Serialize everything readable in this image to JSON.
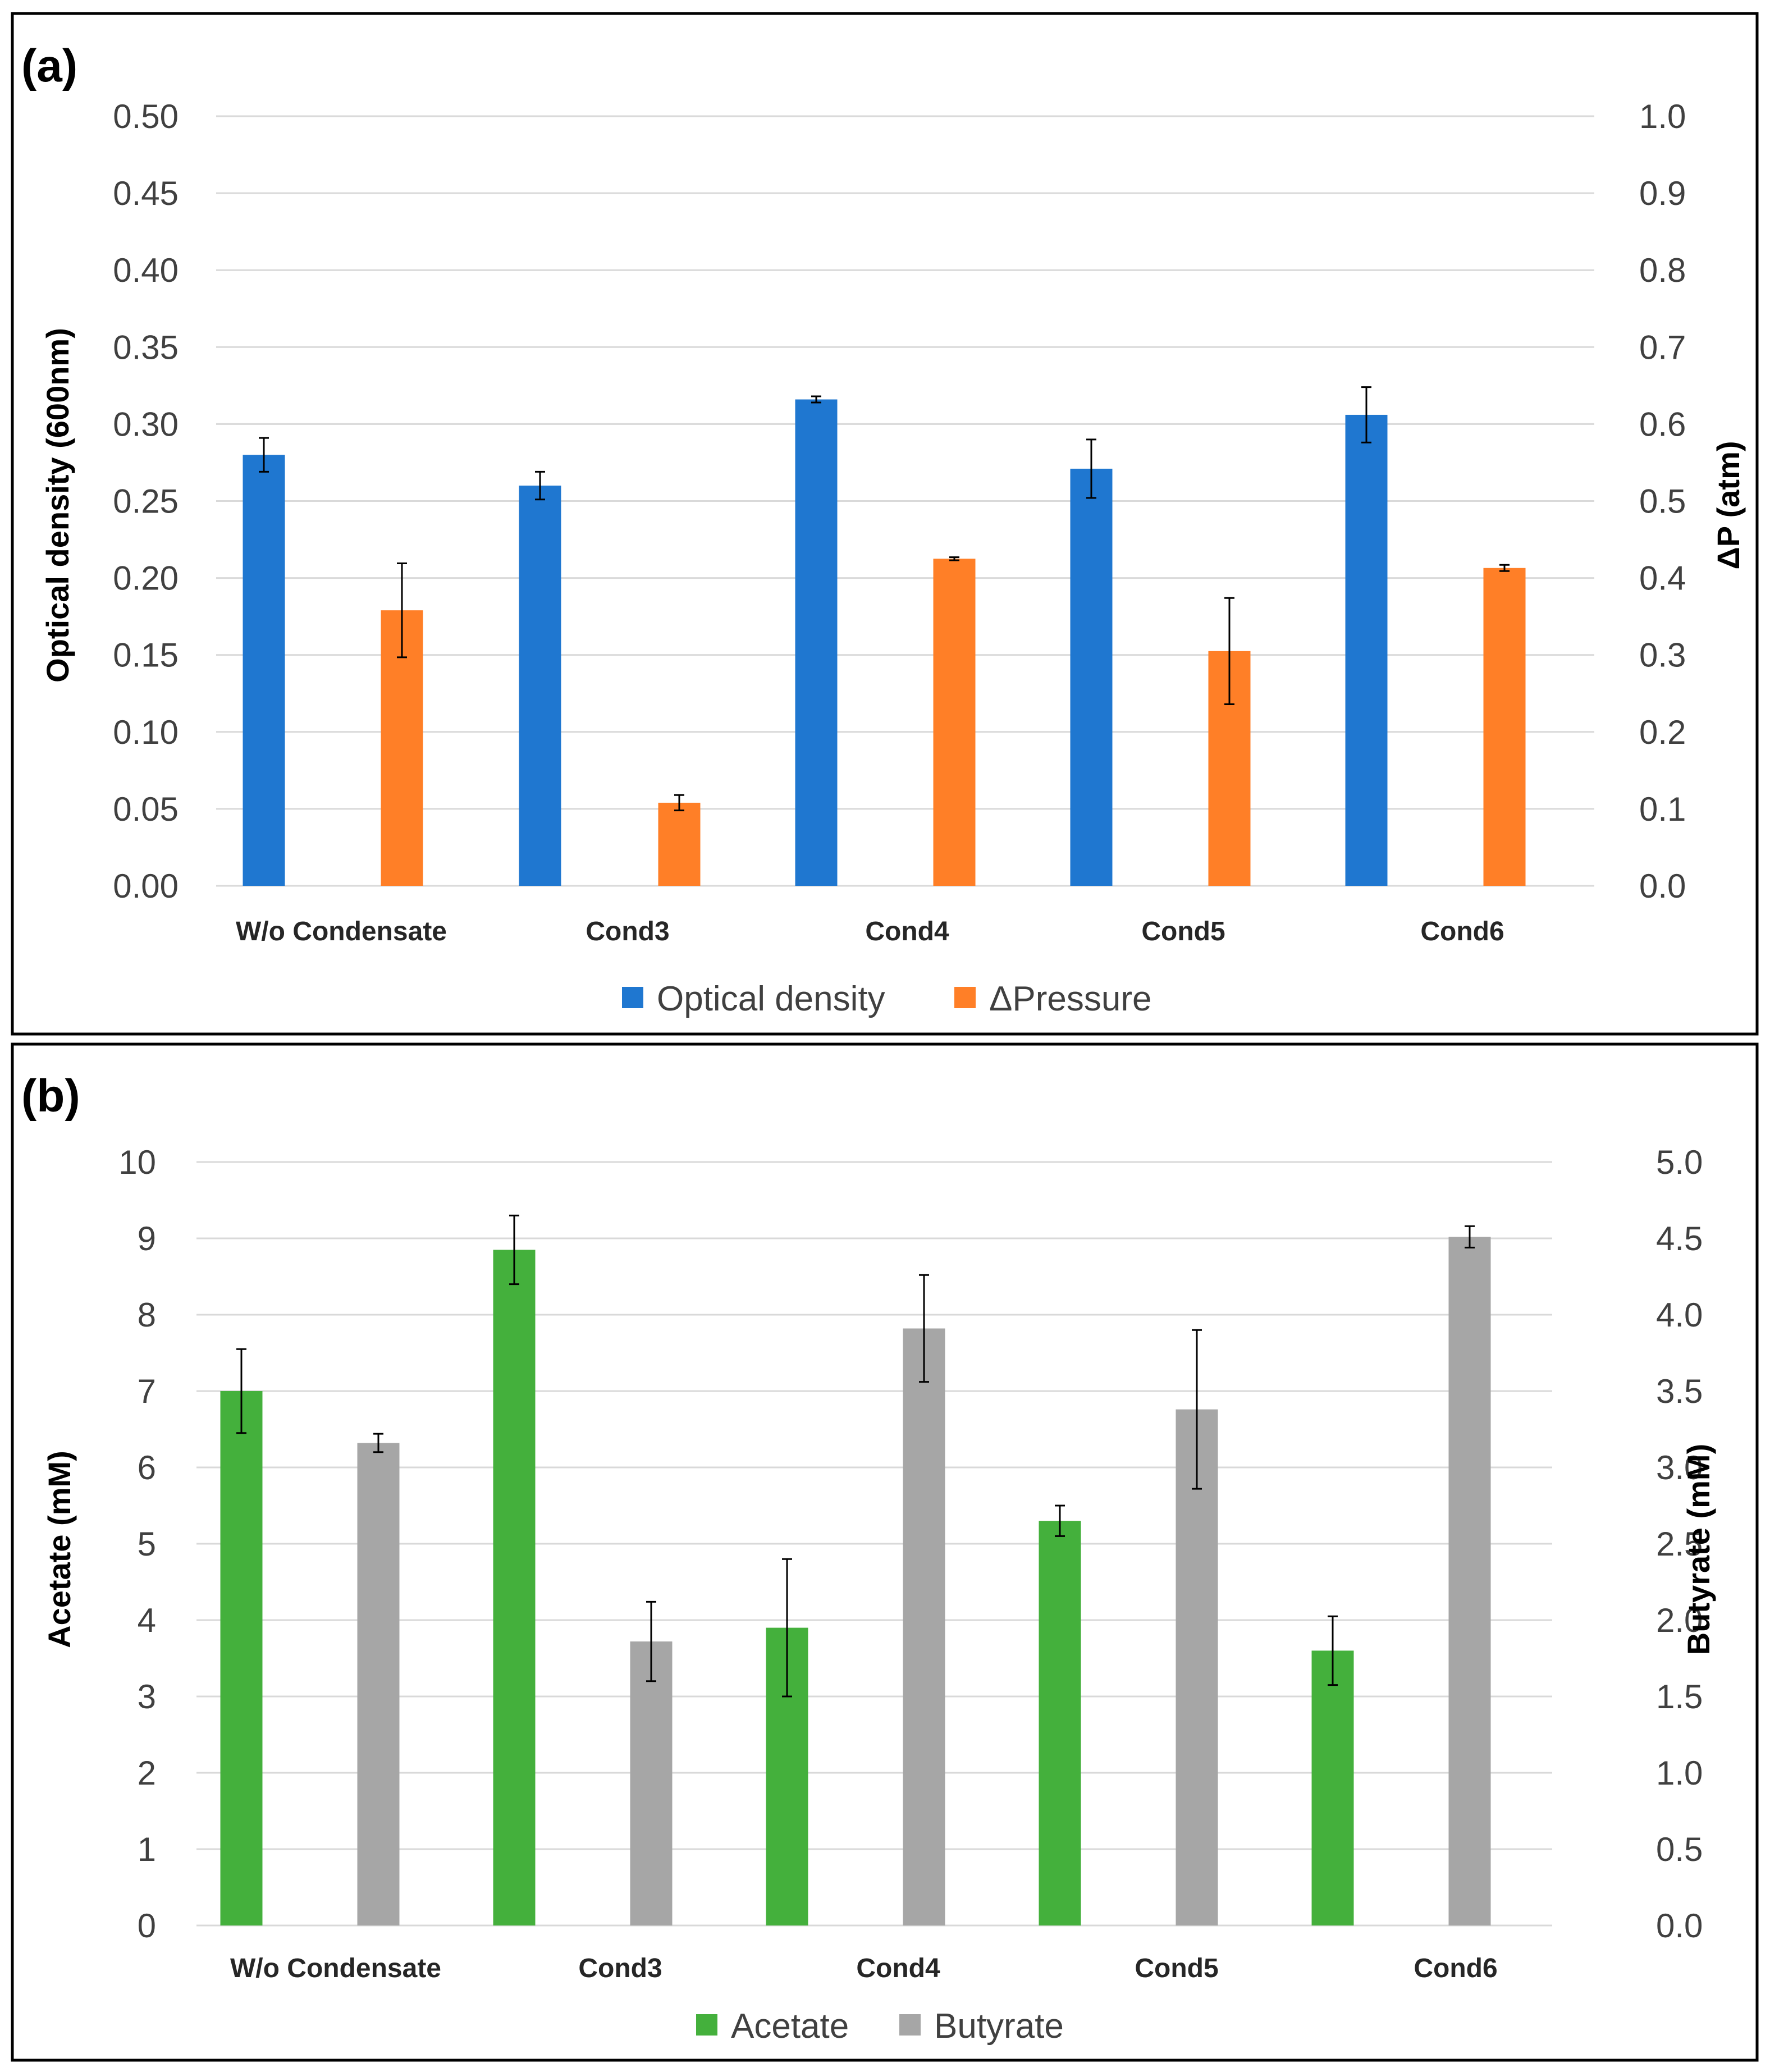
{
  "chart_data": [
    {
      "panel_label": "(a)",
      "type": "bar",
      "categories": [
        "W/o Condensate",
        "Cond3",
        "Cond4",
        "Cond5",
        "Cond6"
      ],
      "left_axis": {
        "title": "Optical density (600nm)",
        "ylim": [
          0,
          0.5
        ],
        "ticks": [
          "0.00",
          "0.05",
          "0.10",
          "0.15",
          "0.20",
          "0.25",
          "0.30",
          "0.35",
          "0.40",
          "0.45",
          "0.50"
        ]
      },
      "right_axis": {
        "title": "ΔP (atm)",
        "ylim": [
          0,
          1.0
        ],
        "ticks": [
          "0.0",
          "0.1",
          "0.2",
          "0.3",
          "0.4",
          "0.5",
          "0.6",
          "0.7",
          "0.8",
          "0.9",
          "1.0"
        ]
      },
      "series": [
        {
          "name": "Optical density",
          "axis": "left",
          "color": "#1f77d0",
          "values": [
            0.28,
            0.26,
            0.316,
            0.271,
            0.306
          ],
          "errors": [
            0.011,
            0.009,
            0.002,
            0.019,
            0.018
          ]
        },
        {
          "name": "ΔPressure",
          "axis": "right",
          "color": "#ff7f27",
          "values": [
            0.358,
            0.108,
            0.425,
            0.305,
            0.413
          ],
          "errors": [
            0.061,
            0.01,
            0.002,
            0.069,
            0.004
          ]
        }
      ],
      "legend": {
        "position": "bottom"
      },
      "grid": true
    },
    {
      "panel_label": "(b)",
      "type": "bar",
      "categories": [
        "W/o Condensate",
        "Cond3",
        "Cond4",
        "Cond5",
        "Cond6"
      ],
      "left_axis": {
        "title": "Acetate (mM)",
        "ylim": [
          0,
          10
        ],
        "ticks": [
          "0",
          "1",
          "2",
          "3",
          "4",
          "5",
          "6",
          "7",
          "8",
          "9",
          "10"
        ]
      },
      "right_axis": {
        "title": "Butyrate (mM)",
        "ylim": [
          0,
          5
        ],
        "ticks": [
          "0.0",
          "0.5",
          "1.0",
          "1.5",
          "2.0",
          "2.5",
          "3.0",
          "3.5",
          "4.0",
          "4.5",
          "5.0"
        ]
      },
      "series": [
        {
          "name": "Acetate",
          "axis": "left",
          "color": "#44b03c",
          "values": [
            7.0,
            8.85,
            3.9,
            5.3,
            3.6
          ],
          "errors": [
            0.55,
            0.45,
            0.9,
            0.2,
            0.45
          ]
        },
        {
          "name": "Butyrate",
          "axis": "right",
          "color": "#a6a6a6",
          "values": [
            3.16,
            1.86,
            3.91,
            3.38,
            4.51
          ],
          "errors": [
            0.06,
            0.26,
            0.35,
            0.52,
            0.07
          ]
        }
      ],
      "legend": {
        "position": "bottom"
      },
      "grid": true
    }
  ]
}
